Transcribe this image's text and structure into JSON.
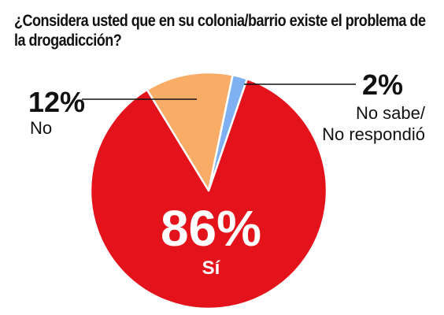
{
  "chart_data": {
    "type": "pie",
    "title": "¿Considera usted que en su colonia/barrio existe el problema de la drogadicción?",
    "slices": [
      {
        "label": "Sí",
        "value": 86,
        "value_label": "86%",
        "color": "#e3121b"
      },
      {
        "label": "No",
        "value": 12,
        "value_label": "12%",
        "color": "#f9ac66"
      },
      {
        "label_lines": [
          "No sabe/",
          "No respondió"
        ],
        "value": 2,
        "value_label": "2%",
        "color": "#7fb0f2"
      }
    ]
  }
}
